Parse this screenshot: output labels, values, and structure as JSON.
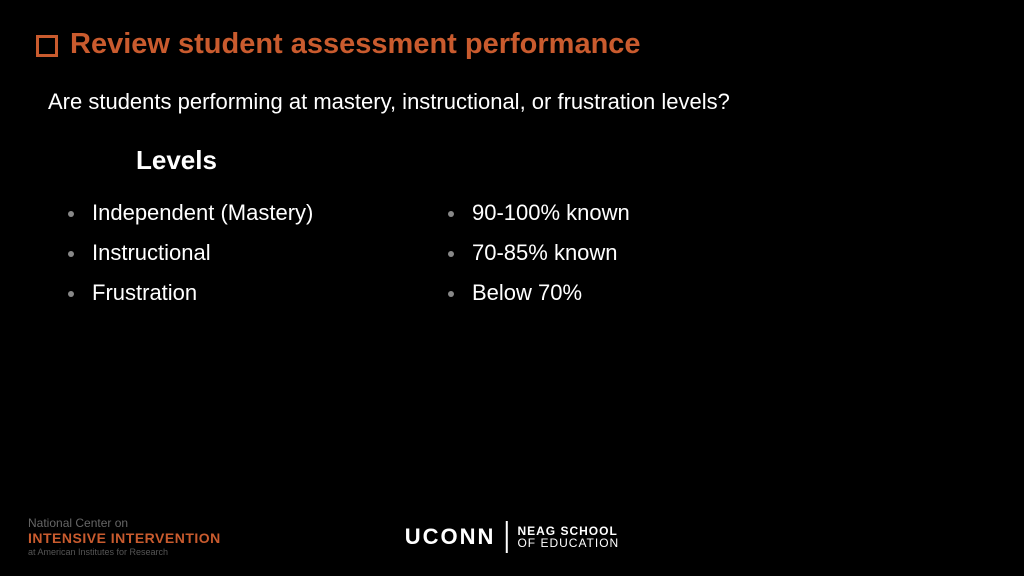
{
  "title": "Review student assessment performance",
  "subtitle": "Are students performing at mastery, instructional, or frustration levels?",
  "section_heading": "Levels",
  "left_column": [
    "Independent (Mastery)",
    "Instructional",
    "Frustration"
  ],
  "right_column": [
    "90-100% known",
    "70-85% known",
    "Below 70%"
  ],
  "footer": {
    "nci_top": "National Center on",
    "nci_main": "INTENSIVE INTERVENTION",
    "nci_sub": "at American Institutes for Research",
    "uconn": "UCONN",
    "neag_top": "NEAG SCHOOL",
    "neag_bottom": "OF EDUCATION"
  },
  "colors": {
    "background": "#000000",
    "accent": "#c95b2e",
    "text": "#ffffff",
    "bullet": "#888888",
    "muted": "#666666"
  }
}
